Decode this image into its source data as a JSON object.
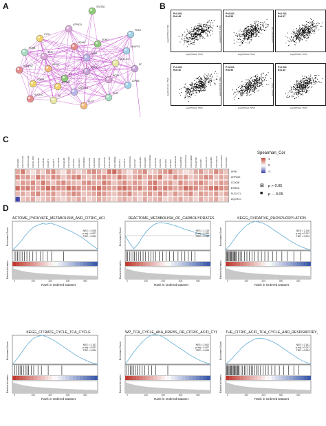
{
  "panels": {
    "a": "A",
    "b": "B",
    "c": "C",
    "d": "D"
  },
  "network": {
    "nodes": [
      "STAT5A",
      "ATP5G3",
      "CYC1",
      "PDK2",
      "SDHB",
      "SDHA",
      "SUCLG1",
      "PDHB",
      "IDH3A",
      "MDH2",
      "CS",
      "ACO2",
      "OGDH",
      "ATP5B",
      "NDUFS2",
      "UQCRC1",
      "FH",
      "IDH2",
      "DLST",
      "PDP1",
      "SDHD",
      "DLD",
      "ATP5A1",
      "NDUFV1",
      "SUCLA2"
    ]
  },
  "scatter": {
    "plots": [
      {
        "p": "P<0.001",
        "r": "R=0.48",
        "x": "log2(PDHA1 TPM)",
        "y": "log2(ATP5G3 TPM)"
      },
      {
        "p": "P<0.001",
        "r": "R=0.58",
        "x": "log2(PDHA1 TPM)",
        "y": "log2(COX5B TPM)"
      },
      {
        "p": "P<0.001",
        "r": "R=0.37",
        "x": "log2(PDHA1 TPM)",
        "y": "log2(SDHB TPM)"
      },
      {
        "p": "P<0.001",
        "r": "R=0.40",
        "x": "log2(PDHA1 TPM)",
        "y": "log2(SUCLG1 TPM)"
      },
      {
        "p": "P<0.001",
        "r": "R=0.55",
        "x": "log2(PDHA1 TPM)",
        "y": "log2(UQCRC1 TPM)"
      },
      {
        "p": "P<0.001",
        "r": "R=0.40",
        "x": "log2(PDHA1 TPM)",
        "y": "log2(FH TPM)"
      }
    ]
  },
  "heatmap": {
    "rows": [
      "AFM1",
      "ATP5G3",
      "COX5B",
      "ESRRA",
      "SUCLG1",
      "UQCRC1"
    ],
    "cols": [
      "CNV-VAV1",
      "CNV-COL1A1",
      "CNV-COL1A2",
      "CNV-KL-RAS",
      "CNV-KRAS",
      "CNV-BRAF",
      "CNV-MT3",
      "CNV-MT1",
      "CNV-SDHA",
      "CNV-EGFR",
      "CNV-CRHR1",
      "CNV-TP53",
      "CNV-LRP1",
      "CNV-MDM2",
      "CNV-PTEN",
      "CNV-ANKS",
      "CNV-CDH1",
      "CNV-ZFP36",
      "CNV-CCND1",
      "CNV-SMAD4",
      "CNV-NF1",
      "CNV-MYC",
      "CNV-PIK3CA",
      "CNV-FHIT",
      "CNV-ERBB2",
      "CNV-GNAS",
      "CNV-CDKN2A",
      "CNV-SOX2",
      "CNV-ATM",
      "CNV-RB1",
      "CNV-APC",
      "CNV-ARID1A",
      "CNV-KMT2D",
      "CNV-NOTCH1",
      "CNV-CREBBP",
      "CNV-EP300",
      "CNV-FAT1",
      "CNV-LRP1B",
      "CNV-ERBB3",
      "CNV-NFE2L2",
      "CNV-CTNNB1",
      "CNV-FGFR1"
    ],
    "legend_title": "Spearman_Cor",
    "legend_ticks": [
      "1",
      "0",
      "-1"
    ],
    "p_legend": [
      {
        "symbol": "⊠",
        "label": "p > 0.05"
      },
      {
        "symbol": "■",
        "label": "p ... 0.05"
      }
    ],
    "matrix": [
      [
        0.3,
        0.45,
        0.2,
        0.1,
        0.25,
        0.15,
        0.35,
        0.4,
        0.2,
        0.1,
        0.3,
        0.25,
        0.15,
        0.2,
        0.35,
        0.4,
        0.3,
        0.2,
        0.45,
        0.5,
        0.35,
        0.2,
        0.1,
        0.25,
        0.3,
        0.4,
        0.15,
        0.2,
        0.3,
        0.35,
        0.45,
        0.25,
        0.2,
        0.1,
        0.15,
        0.3,
        0.35,
        0.2,
        0.25,
        0.4,
        0.3,
        0.2
      ],
      [
        0.4,
        0.3,
        0.35,
        0.2,
        0.45,
        0.3,
        0.25,
        0.4,
        0.35,
        0.2,
        0.3,
        0.4,
        0.45,
        0.25,
        0.2,
        0.3,
        0.35,
        0.4,
        0.3,
        0.25,
        0.45,
        0.35,
        0.2,
        0.3,
        0.4,
        0.25,
        0.35,
        0.3,
        0.45,
        0.2,
        0.25,
        0.4,
        0.3,
        0.35,
        0.2,
        0.25,
        0.3,
        0.4,
        0.35,
        0.2,
        0.3,
        0.25
      ],
      [
        0.2,
        0.35,
        0.3,
        0.4,
        0.25,
        0.45,
        0.3,
        0.2,
        0.35,
        0.4,
        0.3,
        0.25,
        0.2,
        0.35,
        0.4,
        0.3,
        0.25,
        0.45,
        0.35,
        0.2,
        0.3,
        0.4,
        0.25,
        0.35,
        0.3,
        0.2,
        0.4,
        0.45,
        0.25,
        0.3,
        0.35,
        0.2,
        0.4,
        0.3,
        0.25,
        0.35,
        0.4,
        0.3,
        0.2,
        0.25,
        0.35,
        0.3
      ],
      [
        0.5,
        0.4,
        0.45,
        0.35,
        0.3,
        0.4,
        0.5,
        0.45,
        0.4,
        0.35,
        0.5,
        0.45,
        0.4,
        0.3,
        0.35,
        0.45,
        0.5,
        0.4,
        0.35,
        0.3,
        0.45,
        0.5,
        0.4,
        0.35,
        0.45,
        0.3,
        0.4,
        0.5,
        0.35,
        0.45,
        0.4,
        0.3,
        0.35,
        0.5,
        0.45,
        0.4,
        0.3,
        0.35,
        0.45,
        0.5,
        0.4,
        0.35
      ],
      [
        0.25,
        0.3,
        0.2,
        0.35,
        0.4,
        0.25,
        0.3,
        0.35,
        0.2,
        0.25,
        0.3,
        0.4,
        0.35,
        0.2,
        0.25,
        0.3,
        0.4,
        0.35,
        0.25,
        0.2,
        0.3,
        0.35,
        0.4,
        0.25,
        0.2,
        0.3,
        0.35,
        0.25,
        0.4,
        0.3,
        0.2,
        0.35,
        0.25,
        0.3,
        0.4,
        0.2,
        0.35,
        0.3,
        0.25,
        0.35,
        0.2,
        0.3
      ],
      [
        -0.6,
        0.2,
        0.25,
        0.3,
        0.15,
        0.2,
        0.25,
        0.3,
        0.2,
        0.15,
        0.25,
        0.2,
        0.3,
        0.25,
        0.15,
        0.2,
        0.3,
        0.25,
        0.2,
        0.15,
        0.25,
        0.3,
        0.2,
        0.25,
        0.15,
        0.3,
        0.2,
        0.25,
        0.3,
        0.15,
        0.2,
        0.25,
        0.3,
        0.2,
        0.25,
        0.15,
        0.3,
        0.2,
        0.25,
        0.3,
        0.15,
        0.2
      ]
    ]
  },
  "gsea": {
    "y_label": "Enrichment Score",
    "y2_label": "Ranked list metric",
    "x_label": "Rank in Ordered Dataset",
    "x_ticks": [
      "0",
      "100",
      "200",
      "300",
      "400"
    ],
    "plots": [
      {
        "title": "ACTOME_PYRUVATE_METABOLISM_AND_CITRIC_ACID_TC",
        "nes": "NES = 2.006",
        "padj": "p.adj = 0.007",
        "fdr": "FDR = 0.004",
        "curve": [
          0,
          0.08,
          0.18,
          0.3,
          0.4,
          0.48,
          0.52,
          0.55,
          0.54,
          0.56,
          0.53,
          0.5,
          0.46,
          0.42,
          0.38,
          0.33,
          0.28,
          0.22,
          0.15,
          0.08,
          0.02
        ],
        "es_range": [
          0,
          0.6
        ],
        "hits": [
          0.02,
          0.04,
          0.06,
          0.08,
          0.1,
          0.12,
          0.14,
          0.17,
          0.2,
          0.24,
          0.28,
          0.33,
          0.36,
          0.41,
          0.46,
          0.6
        ]
      },
      {
        "title": "REACTOME_METABOLISM_OF_CARBOHYDRATES",
        "nes": "NES = 1.319",
        "padj": "p.adj = 0.289",
        "fdr": "FDR = 0.163",
        "curve": [
          0,
          -0.25,
          -0.45,
          -0.3,
          -0.05,
          0.15,
          0.3,
          0.4,
          0.45,
          0.44,
          0.42,
          0.38,
          0.33,
          0.28,
          0.22,
          0.18,
          0.13,
          0.09,
          0.05,
          0.02,
          0
        ],
        "es_range": [
          -0.5,
          0.5
        ],
        "hits": [
          0.01,
          0.03,
          0.05,
          0.07,
          0.09,
          0.11,
          0.13,
          0.16,
          0.18,
          0.21,
          0.24,
          0.27,
          0.3,
          0.33,
          0.36,
          0.4,
          0.44,
          0.48,
          0.52,
          0.57,
          0.62,
          0.66,
          0.7,
          0.74,
          0.78,
          0.82
        ]
      },
      {
        "title": "KEGG_OXIDATIVE_PHOSPHORYLATION",
        "nes": "NES = 2.116",
        "padj": "p.adj = 0.007",
        "fdr": "FDR = 0.004",
        "curve": [
          0,
          0.1,
          0.22,
          0.34,
          0.44,
          0.52,
          0.57,
          0.6,
          0.58,
          0.55,
          0.5,
          0.44,
          0.38,
          0.32,
          0.26,
          0.2,
          0.15,
          0.1,
          0.06,
          0.03,
          0
        ],
        "es_range": [
          0,
          0.6
        ],
        "hits": [
          0.01,
          0.02,
          0.03,
          0.04,
          0.05,
          0.06,
          0.07,
          0.08,
          0.09,
          0.1,
          0.11,
          0.12,
          0.13,
          0.15,
          0.17,
          0.19,
          0.22,
          0.25,
          0.28,
          0.31,
          0.34,
          0.38,
          0.42,
          0.46,
          0.5,
          0.55,
          0.6,
          0.66,
          0.72,
          0.8,
          0.88
        ]
      },
      {
        "title": "KEGG_CITRATE_CYCLE_TCA_CYCLE",
        "nes": "NES = 2.147",
        "padj": "p.adj = 0.007",
        "fdr": "FDR = 0.004",
        "curve": [
          0,
          0.1,
          0.22,
          0.35,
          0.46,
          0.54,
          0.58,
          0.6,
          0.57,
          0.53,
          0.48,
          0.42,
          0.36,
          0.3,
          0.24,
          0.18,
          0.13,
          0.09,
          0.05,
          0.02,
          0
        ],
        "es_range": [
          0,
          0.6
        ],
        "hits": [
          0.03,
          0.05,
          0.07,
          0.09,
          0.11,
          0.13,
          0.15,
          0.17,
          0.19,
          0.22,
          0.25,
          0.3,
          0.34,
          0.42,
          0.58
        ]
      },
      {
        "title": "WP_TCA_CYCLE_AKA_KREBS_OR_CITRIC_ACID_CYCL",
        "nes": "NES = 2.602",
        "padj": "p.adj = 0.007",
        "fdr": "FDR = 0.004",
        "curve": [
          0,
          0.12,
          0.25,
          0.36,
          0.46,
          0.54,
          0.6,
          0.62,
          0.6,
          0.56,
          0.5,
          0.44,
          0.38,
          0.32,
          0.26,
          0.2,
          0.15,
          0.1,
          0.06,
          0.03,
          0
        ],
        "es_range": [
          0,
          0.6
        ],
        "hits": [
          0.02,
          0.04,
          0.06,
          0.08,
          0.1,
          0.12,
          0.14,
          0.17,
          0.2,
          0.23,
          0.27,
          0.31,
          0.36,
          0.5
        ]
      },
      {
        "title": "THE_CITRIC_ACID_TCA_CYCLE_AND_RESPIRATORY_ELEC",
        "nes": "NES = 2.161",
        "padj": "p.adj = 0.007",
        "fdr": "FDR = 0.004",
        "curve": [
          0,
          0.06,
          0.14,
          0.22,
          0.3,
          0.36,
          0.4,
          0.44,
          0.45,
          0.44,
          0.42,
          0.39,
          0.35,
          0.3,
          0.25,
          0.2,
          0.15,
          0.1,
          0.06,
          0.03,
          0
        ],
        "es_range": [
          0,
          0.5
        ],
        "hits": [
          0.01,
          0.02,
          0.03,
          0.04,
          0.05,
          0.06,
          0.07,
          0.08,
          0.09,
          0.1,
          0.11,
          0.12,
          0.13,
          0.14,
          0.15,
          0.16,
          0.18,
          0.2,
          0.22,
          0.24,
          0.26,
          0.28,
          0.3,
          0.32,
          0.34,
          0.36,
          0.38,
          0.41,
          0.44,
          0.47,
          0.5,
          0.54,
          0.58,
          0.63,
          0.68,
          0.74,
          0.8,
          0.86
        ]
      }
    ]
  },
  "colors": {
    "network_edge": "#c040c8",
    "gsea_curve": "#6fb4d8",
    "heat_pos": "#c04a3a",
    "heat_neg": "#3b3fa8",
    "heat_mid": "#ffffff"
  }
}
